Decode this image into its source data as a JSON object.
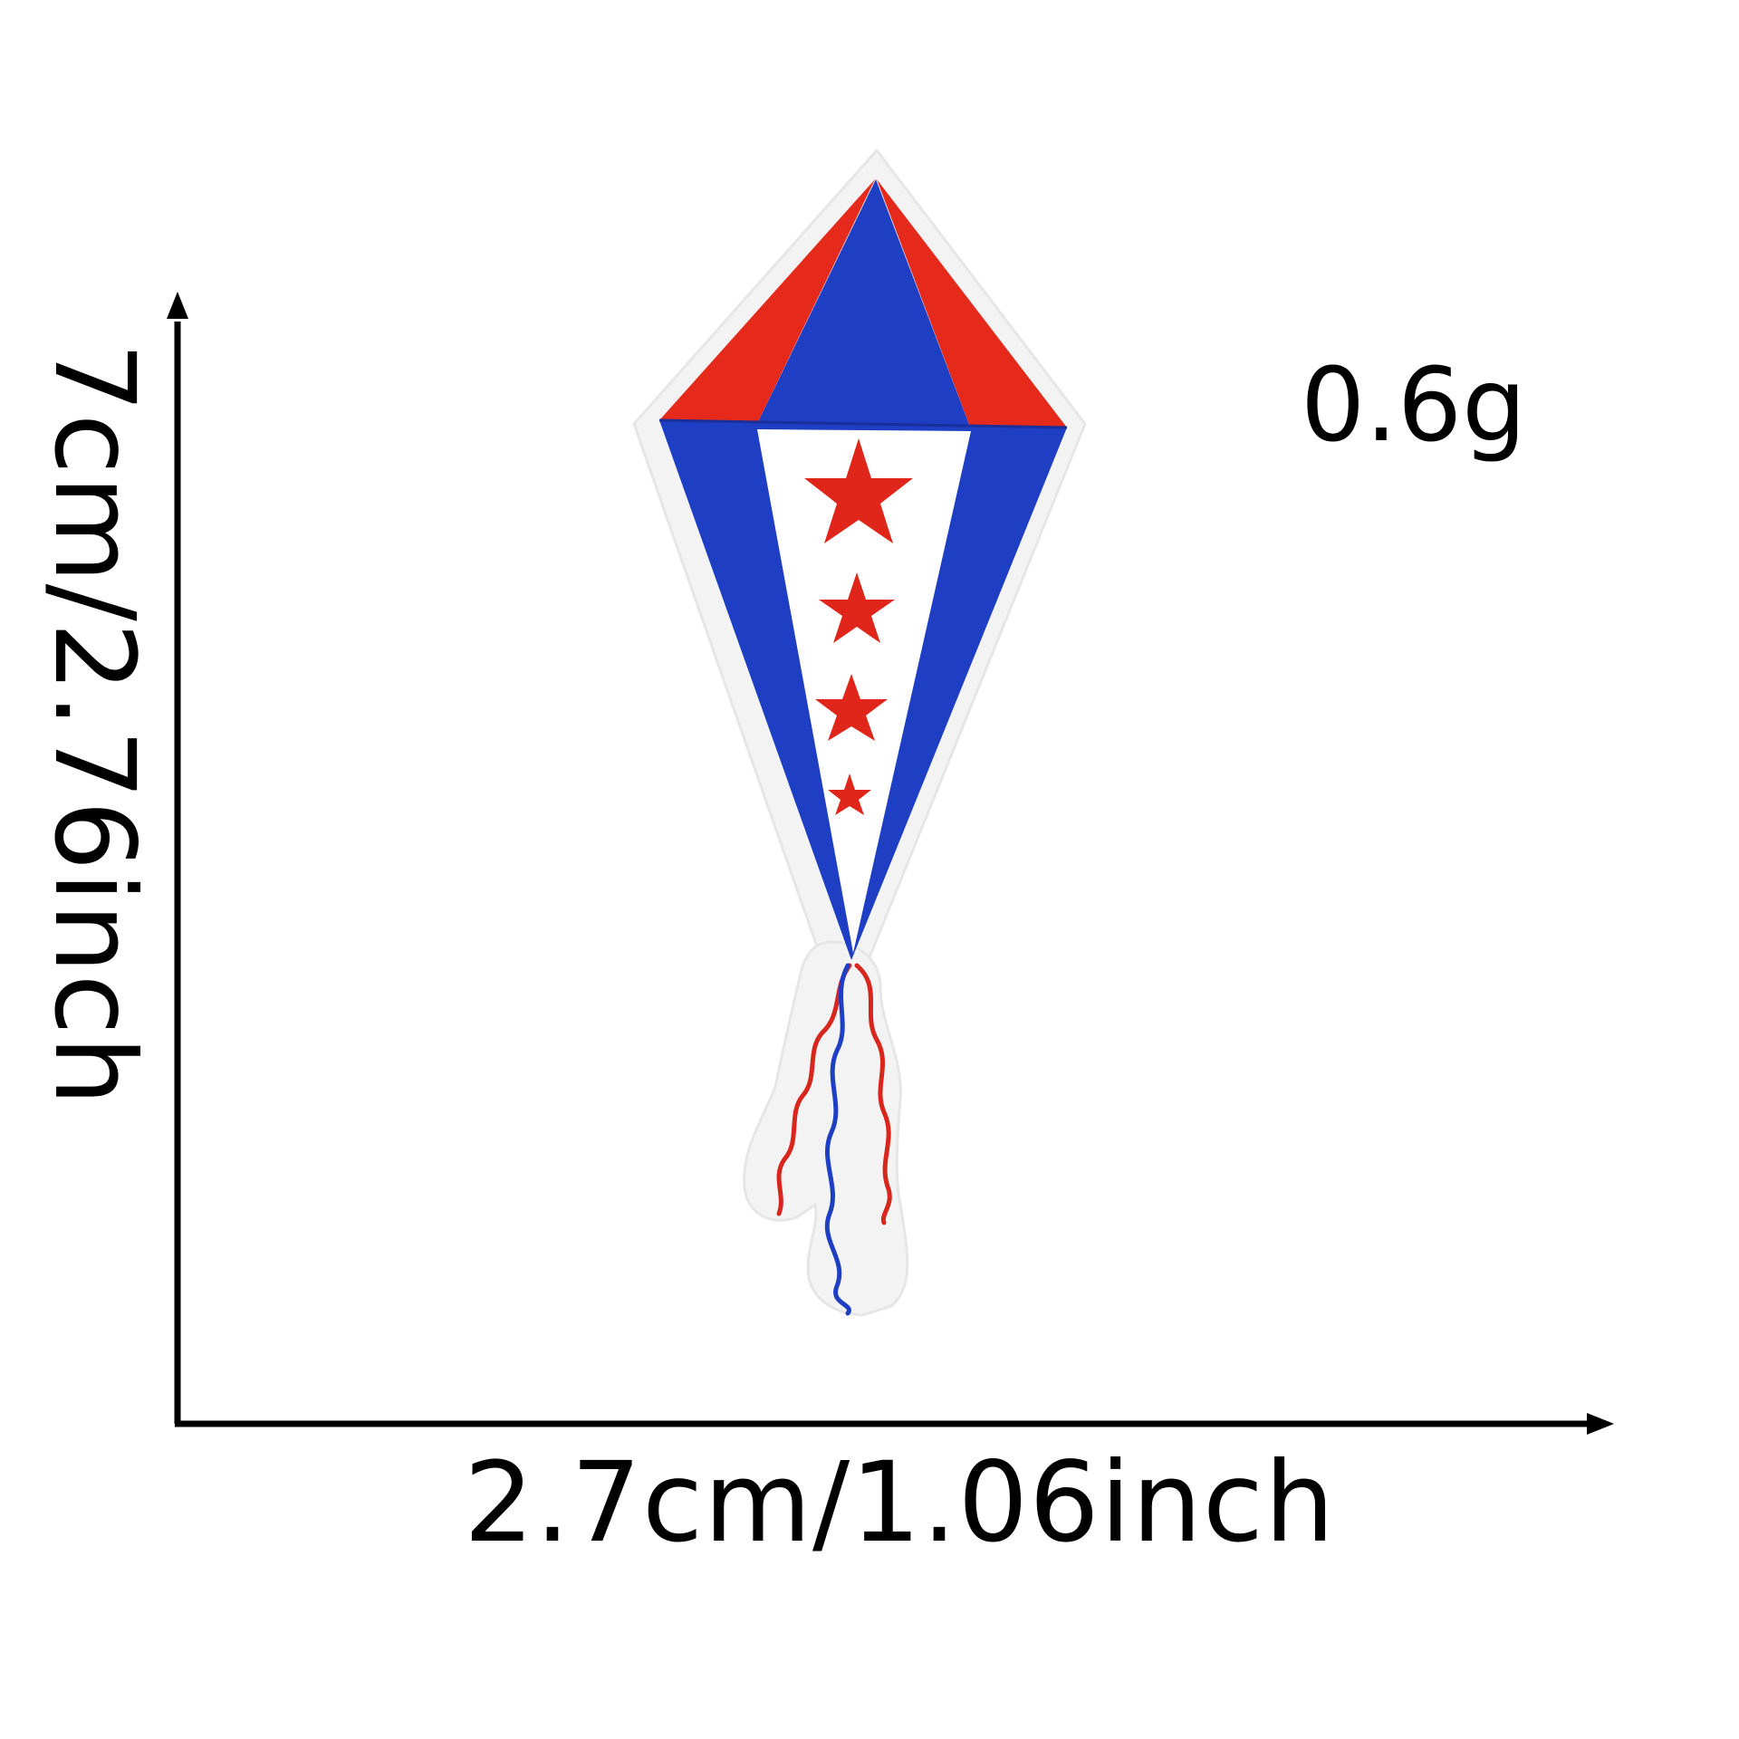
{
  "dimensions": {
    "height_label": "7cm/2.76inch",
    "width_label": "2.7cm/1.06inch"
  },
  "weight_label": "0.6g",
  "product": {
    "name": "kite-embroidered-patch",
    "colors": {
      "red": "#e52a1c",
      "blue": "#1e3fc4",
      "white": "#ffffff",
      "felt": "#f4f4f4",
      "axis": "#000000"
    }
  }
}
